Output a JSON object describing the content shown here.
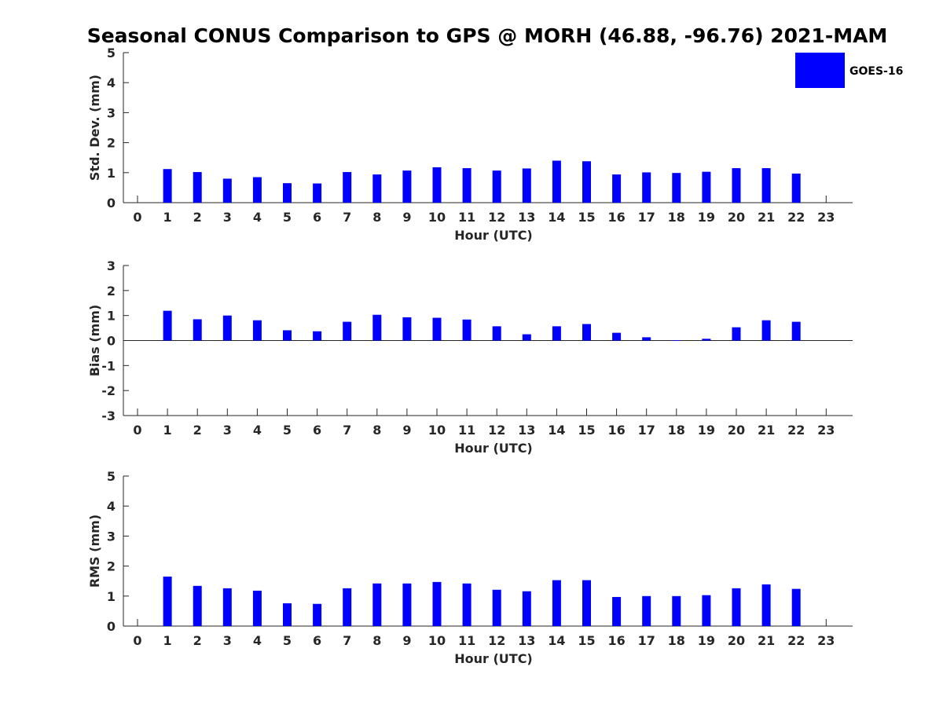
{
  "chart_data": {
    "title": "Seasonal CONUS Comparison to GPS @ MORH (46.88, -96.76) 2021-MAM",
    "legend": {
      "label": "GOES-16",
      "color": "#0000ff",
      "placement": "top-right"
    },
    "panels": [
      {
        "type": "bar",
        "name": "std-dev",
        "xlabel": "Hour (UTC)",
        "ylabel": "Std. Dev. (mm)",
        "ylim": [
          0,
          5
        ],
        "yticks": [
          0,
          1,
          2,
          3,
          4,
          5
        ],
        "categories": [
          "0",
          "1",
          "2",
          "3",
          "4",
          "5",
          "6",
          "7",
          "8",
          "9",
          "10",
          "11",
          "12",
          "13",
          "14",
          "15",
          "16",
          "17",
          "18",
          "19",
          "20",
          "21",
          "22",
          "23"
        ],
        "values": [
          null,
          1.12,
          1.02,
          0.8,
          0.85,
          0.65,
          0.64,
          1.02,
          0.94,
          1.07,
          1.18,
          1.15,
          1.07,
          1.14,
          1.4,
          1.38,
          0.94,
          1.01,
          0.99,
          1.03,
          1.15,
          1.15,
          0.97,
          null
        ]
      },
      {
        "type": "bar",
        "name": "bias",
        "xlabel": "Hour (UTC)",
        "ylabel": "Bias (mm)",
        "ylim": [
          -3,
          3
        ],
        "yticks": [
          -3,
          -2,
          -1,
          0,
          1,
          2,
          3
        ],
        "zero_line": true,
        "categories": [
          "0",
          "1",
          "2",
          "3",
          "4",
          "5",
          "6",
          "7",
          "8",
          "9",
          "10",
          "11",
          "12",
          "13",
          "14",
          "15",
          "16",
          "17",
          "18",
          "19",
          "20",
          "21",
          "22",
          "23"
        ],
        "values": [
          null,
          1.19,
          0.85,
          1.0,
          0.81,
          0.41,
          0.37,
          0.75,
          1.03,
          0.93,
          0.91,
          0.84,
          0.57,
          0.25,
          0.57,
          0.66,
          0.31,
          0.13,
          0.01,
          0.07,
          0.53,
          0.81,
          0.75,
          null
        ]
      },
      {
        "type": "bar",
        "name": "rms",
        "xlabel": "Hour (UTC)",
        "ylabel": "RMS (mm)",
        "ylim": [
          0,
          5
        ],
        "yticks": [
          0,
          1,
          2,
          3,
          4,
          5
        ],
        "categories": [
          "0",
          "1",
          "2",
          "3",
          "4",
          "5",
          "6",
          "7",
          "8",
          "9",
          "10",
          "11",
          "12",
          "13",
          "14",
          "15",
          "16",
          "17",
          "18",
          "19",
          "20",
          "21",
          "22",
          "23"
        ],
        "values": [
          null,
          1.65,
          1.34,
          1.26,
          1.18,
          0.76,
          0.74,
          1.26,
          1.42,
          1.42,
          1.47,
          1.42,
          1.21,
          1.16,
          1.53,
          1.53,
          0.97,
          1.0,
          1.0,
          1.03,
          1.26,
          1.39,
          1.24,
          null
        ]
      }
    ]
  }
}
